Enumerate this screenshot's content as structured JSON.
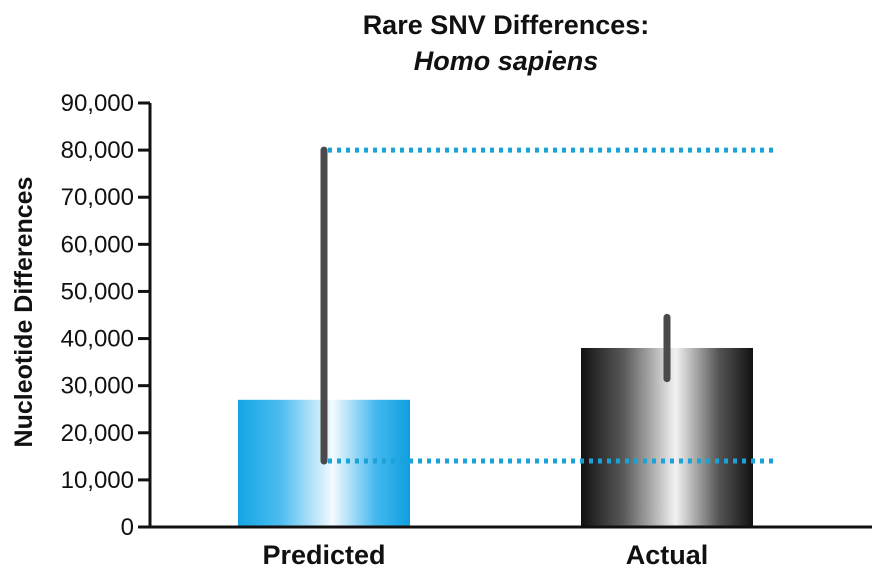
{
  "chart_data": {
    "type": "bar",
    "title": "Rare SNV Differences:",
    "subtitle": "Homo sapiens",
    "xlabel": "",
    "ylabel": "Nucleotide Differences",
    "ylim": [
      0,
      90000
    ],
    "yticks": [
      0,
      10000,
      20000,
      30000,
      40000,
      50000,
      60000,
      70000,
      80000,
      90000
    ],
    "ytick_labels": [
      "0",
      "10,000",
      "20,000",
      "30,000",
      "40,000",
      "50,000",
      "60,000",
      "70,000",
      "80,000",
      "90,000"
    ],
    "categories": [
      "Predicted",
      "Actual"
    ],
    "values": [
      27000,
      38000
    ],
    "error_ranges": [
      [
        14000,
        80000
      ],
      [
        31500,
        44500
      ]
    ],
    "reference_lines": [
      {
        "value": 80000,
        "style": "dotted"
      },
      {
        "value": 14000,
        "style": "dotted"
      }
    ],
    "colors": {
      "predicted": "#12a6e6",
      "actual": "#1a1a1a",
      "error_bar": "#4a4a4a",
      "reference_line": "#1aa3d9",
      "axis": "#111111"
    },
    "grid": false,
    "legend": "none"
  }
}
